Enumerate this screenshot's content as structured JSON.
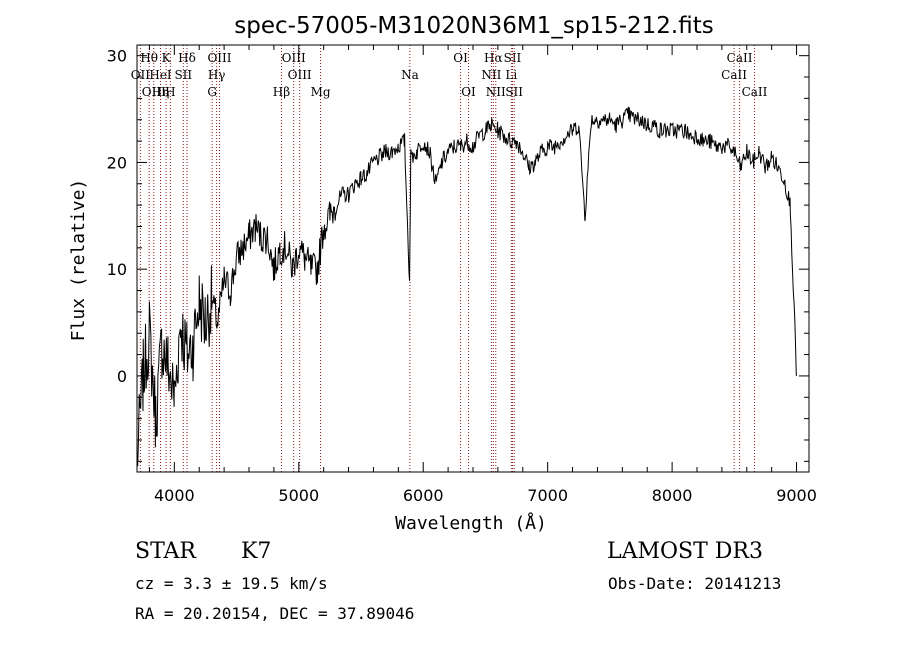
{
  "chart_data": {
    "type": "line",
    "title": "spec-57005-M31020N36M1_sp15-212.fits",
    "xlabel": "Wavelength (Å)",
    "ylabel": "Flux (relative)",
    "xlim": [
      3700,
      9100
    ],
    "ylim": [
      -9,
      31
    ],
    "xticks": [
      4000,
      5000,
      6000,
      7000,
      8000,
      9000
    ],
    "yticks": [
      0,
      10,
      20,
      30
    ],
    "line_color": "#000000",
    "marker_color": "#8b1a1a",
    "series": [
      {
        "name": "spectrum",
        "x": [
          3700,
          3750,
          3800,
          3850,
          3900,
          3950,
          4000,
          4050,
          4100,
          4150,
          4200,
          4250,
          4300,
          4350,
          4400,
          4450,
          4500,
          4550,
          4600,
          4650,
          4700,
          4750,
          4800,
          4850,
          4900,
          4950,
          5000,
          5050,
          5100,
          5150,
          5200,
          5250,
          5300,
          5350,
          5400,
          5450,
          5500,
          5550,
          5600,
          5650,
          5700,
          5750,
          5800,
          5850,
          5890,
          5900,
          5950,
          6000,
          6050,
          6100,
          6150,
          6200,
          6250,
          6300,
          6350,
          6400,
          6450,
          6500,
          6550,
          6600,
          6650,
          6700,
          6750,
          6800,
          6850,
          6900,
          6950,
          7000,
          7050,
          7100,
          7150,
          7200,
          7250,
          7300,
          7350,
          7400,
          7450,
          7500,
          7550,
          7600,
          7650,
          7700,
          7750,
          7800,
          7850,
          7900,
          7950,
          8000,
          8050,
          8100,
          8150,
          8200,
          8250,
          8300,
          8350,
          8400,
          8450,
          8500,
          8550,
          8600,
          8650,
          8700,
          8750,
          8800,
          8850,
          8900,
          8950,
          9000
        ],
        "y": [
          -8,
          0,
          4,
          -4,
          3,
          1,
          -2,
          5,
          2,
          3,
          7,
          5,
          7,
          5,
          9,
          8,
          11,
          12,
          13,
          14,
          13,
          13,
          10,
          12,
          12,
          10,
          12,
          11,
          10,
          10,
          14,
          15,
          16,
          17,
          17,
          18,
          18.5,
          19,
          20,
          20.5,
          21,
          21,
          21.5,
          22,
          9,
          20.5,
          21,
          22,
          21,
          18,
          20,
          21,
          21.5,
          21.5,
          22,
          21.5,
          22.5,
          23,
          23.5,
          23,
          22.5,
          22,
          22,
          21,
          19.5,
          20,
          21,
          21.5,
          21.5,
          22,
          22.5,
          23,
          23.5,
          15,
          24,
          24,
          24,
          24,
          23.5,
          24,
          24.5,
          24,
          24,
          23.5,
          23.5,
          23,
          23,
          23,
          23,
          23,
          22.5,
          22.5,
          22,
          22,
          21.5,
          21.5,
          21.5,
          21,
          19.5,
          21,
          20,
          21,
          19.5,
          20.5,
          19.5,
          18.5,
          16,
          0
        ]
      }
    ],
    "line_markers": [
      {
        "label": "Hθ",
        "wavelength": 3798,
        "row": 0
      },
      {
        "label": "K",
        "wavelength": 3934,
        "row": 0
      },
      {
        "label": "Hδ",
        "wavelength": 4102,
        "row": 0
      },
      {
        "label": "OIII",
        "wavelength": 4363,
        "row": 0
      },
      {
        "label": "OIII",
        "wavelength": 4959,
        "row": 0
      },
      {
        "label": "OI",
        "wavelength": 6300,
        "row": 0
      },
      {
        "label": "Hα",
        "wavelength": 6563,
        "row": 0
      },
      {
        "label": "SII",
        "wavelength": 6717,
        "row": 0
      },
      {
        "label": "CaII",
        "wavelength": 8542,
        "row": 0
      },
      {
        "label": "OII",
        "wavelength": 3727,
        "row": 1
      },
      {
        "label": "HeI",
        "wavelength": 3889,
        "row": 1
      },
      {
        "label": "SII",
        "wavelength": 4072,
        "row": 1
      },
      {
        "label": "Hγ",
        "wavelength": 4340,
        "row": 1
      },
      {
        "label": "OIII",
        "wavelength": 5007,
        "row": 1
      },
      {
        "label": "Na",
        "wavelength": 5893,
        "row": 1
      },
      {
        "label": "NII",
        "wavelength": 6548,
        "row": 1
      },
      {
        "label": "Li",
        "wavelength": 6708,
        "row": 1
      },
      {
        "label": "CaII",
        "wavelength": 8498,
        "row": 1
      },
      {
        "label": "OIII",
        "wavelength": 3835,
        "row": 2
      },
      {
        "label": "Hη",
        "wavelength": 3889,
        "row": 2
      },
      {
        "label": "H",
        "wavelength": 3968,
        "row": 2
      },
      {
        "label": "G",
        "wavelength": 4304,
        "row": 2
      },
      {
        "label": "Hβ",
        "wavelength": 4861,
        "row": 2
      },
      {
        "label": "Mg",
        "wavelength": 5175,
        "row": 2
      },
      {
        "label": "OI",
        "wavelength": 6364,
        "row": 2
      },
      {
        "label": "NII",
        "wavelength": 6583,
        "row": 2
      },
      {
        "label": "SII",
        "wavelength": 6731,
        "row": 2
      },
      {
        "label": "CaII",
        "wavelength": 8662,
        "row": 2
      }
    ]
  },
  "info": {
    "object_class": "STAR",
    "subclass": "K7",
    "survey": "LAMOST DR3",
    "redshift": "cz = 3.3 ± 19.5 km/s",
    "obs_date": "Obs-Date: 20141213",
    "coords": "RA =  20.20154, DEC =  37.89046"
  }
}
